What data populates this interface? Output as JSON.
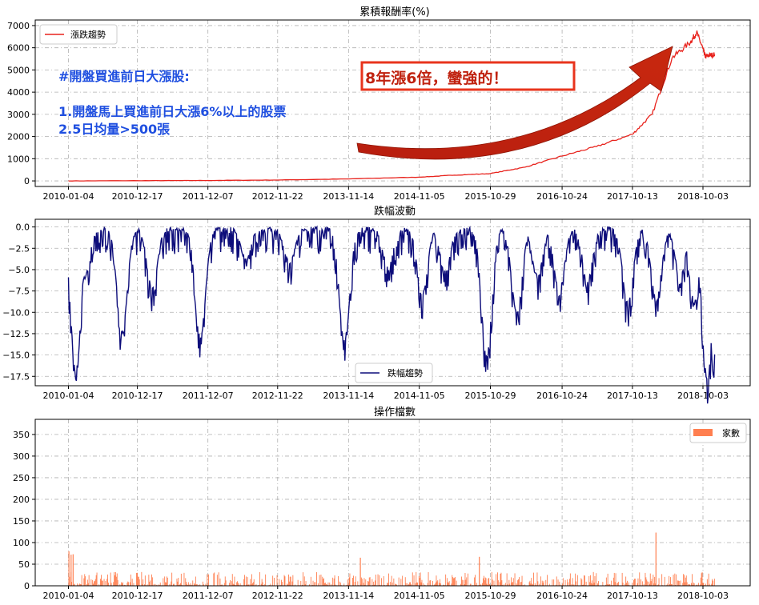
{
  "chart_data": [
    {
      "type": "line",
      "title": "累積報酬率(%)",
      "x_tick_labels": [
        "2010-01-04",
        "2010-12-17",
        "2011-12-07",
        "2012-11-22",
        "2013-11-14",
        "2014-11-05",
        "2015-10-29",
        "2016-10-24",
        "2017-10-13",
        "2018-10-03"
      ],
      "y_ticks": [
        0,
        1000,
        2000,
        3000,
        4000,
        5000,
        6000,
        7000
      ],
      "ylim": [
        -250,
        7250
      ],
      "grid": true,
      "legend_position": "upper-left",
      "series": [
        {
          "name": "漲跌趨勢",
          "color": "#e8231d",
          "x": [
            "2010-01-04",
            "2010-12-17",
            "2011-12-07",
            "2012-11-22",
            "2013-11-14",
            "2014-11-05",
            "2015-05-01",
            "2015-10-29",
            "2016-04-20",
            "2016-10-24",
            "2017-04-15",
            "2017-10-13",
            "2018-01-20",
            "2018-05-01",
            "2018-08-01",
            "2018-09-01",
            "2018-10-03",
            "2018-10-15",
            "2018-11-01",
            "2018-12-01"
          ],
          "values": [
            0,
            10,
            20,
            40,
            90,
            170,
            260,
            330,
            620,
            1120,
            1550,
            2100,
            3000,
            5550,
            6250,
            6700,
            5950,
            5600,
            5650,
            5700
          ]
        }
      ],
      "annotations": {
        "blue_heading": "#開盤買進前日大漲股:",
        "blue_line1": "1.開盤馬上買進前日大漲6%以上的股票",
        "blue_line2": "2.5日均量>500張",
        "red_box": "8年漲6倍，蠻強的！"
      }
    },
    {
      "type": "line",
      "title": "跌幅波動",
      "x_tick_labels": [
        "2010-01-04",
        "2010-12-17",
        "2011-12-07",
        "2012-11-22",
        "2013-11-14",
        "2014-11-05",
        "2015-10-29",
        "2016-10-24",
        "2017-10-13",
        "2018-10-03"
      ],
      "y_ticks": [
        0.0,
        -2.5,
        -5.0,
        -7.5,
        -10.0,
        -12.5,
        -15.0,
        -17.5
      ],
      "y_tick_labels": [
        "0.0",
        "−2.5",
        "−5.0",
        "−7.5",
        "−10.0",
        "−12.5",
        "−15.0",
        "−17.5"
      ],
      "ylim": [
        -18.6,
        0.9
      ],
      "grid": true,
      "legend_position": "lower-center",
      "series": [
        {
          "name": "跌幅趨勢",
          "color": "#0d0d7a",
          "dips": [
            {
              "x": "2010-02-10",
              "depth": -16.7
            },
            {
              "x": "2010-03-25",
              "depth": -5.8
            },
            {
              "x": "2010-10-01",
              "depth": -12.2
            },
            {
              "x": "2011-03-01",
              "depth": -7.0
            },
            {
              "x": "2011-10-30",
              "depth": -12.8
            },
            {
              "x": "2012-06-15",
              "depth": -3.5
            },
            {
              "x": "2013-01-20",
              "depth": -4.0
            },
            {
              "x": "2013-10-25",
              "depth": -13.0
            },
            {
              "x": "2014-06-01",
              "depth": -4.5
            },
            {
              "x": "2014-11-20",
              "depth": -7.8
            },
            {
              "x": "2015-03-15",
              "depth": -5.0
            },
            {
              "x": "2015-10-10",
              "depth": -15.1
            },
            {
              "x": "2016-03-10",
              "depth": -10.0
            },
            {
              "x": "2016-06-20",
              "depth": -5.5
            },
            {
              "x": "2016-10-10",
              "depth": -7.3
            },
            {
              "x": "2017-03-01",
              "depth": -6.0
            },
            {
              "x": "2017-09-20",
              "depth": -8.8
            },
            {
              "x": "2018-02-10",
              "depth": -8.4
            },
            {
              "x": "2018-06-10",
              "depth": -5.5
            },
            {
              "x": "2018-08-20",
              "depth": -8.6
            },
            {
              "x": "2018-10-25",
              "depth": -17.6
            },
            {
              "x": "2018-11-25",
              "depth": -15.2
            }
          ]
        }
      ]
    },
    {
      "type": "bar",
      "title": "操作檔數",
      "x_tick_labels": [
        "2010-01-04",
        "2010-12-17",
        "2011-12-07",
        "2012-11-22",
        "2013-11-14",
        "2014-11-05",
        "2015-10-29",
        "2016-10-24",
        "2017-10-13",
        "2018-10-03"
      ],
      "y_ticks": [
        0,
        50,
        100,
        150,
        200,
        250,
        300,
        350
      ],
      "ylim": [
        0,
        385
      ],
      "grid": true,
      "legend_position": "upper-right",
      "series": [
        {
          "name": "家數",
          "color": "#ff7f50",
          "typical_range": [
            0,
            40
          ],
          "peaks": [
            {
              "x": "2010-01-04",
              "value": 80
            },
            {
              "x": "2010-01-15",
              "value": 72
            },
            {
              "x": "2010-01-25",
              "value": 73
            },
            {
              "x": "2014-01-10",
              "value": 65
            },
            {
              "x": "2015-09-01",
              "value": 67
            },
            {
              "x": "2018-02-06",
              "value": 123
            }
          ]
        }
      ]
    }
  ]
}
